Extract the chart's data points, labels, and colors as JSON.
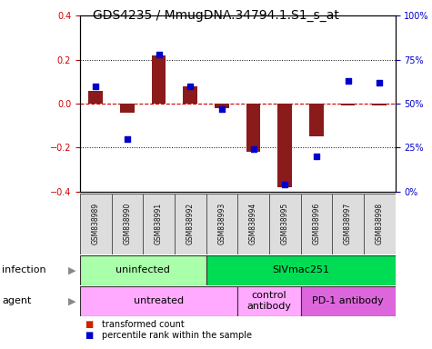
{
  "title": "GDS4235 / MmugDNA.34794.1.S1_s_at",
  "samples": [
    "GSM838989",
    "GSM838990",
    "GSM838991",
    "GSM838992",
    "GSM838993",
    "GSM838994",
    "GSM838995",
    "GSM838996",
    "GSM838997",
    "GSM838998"
  ],
  "transformed_count": [
    0.06,
    -0.04,
    0.22,
    0.08,
    -0.02,
    -0.22,
    -0.38,
    -0.15,
    -0.01,
    -0.01
  ],
  "percentile_rank": [
    60,
    30,
    78,
    60,
    47,
    24,
    4,
    20,
    63,
    62
  ],
  "ylim_left": [
    -0.4,
    0.4
  ],
  "ylim_right": [
    0,
    100
  ],
  "yticks_left": [
    -0.4,
    -0.2,
    0.0,
    0.2,
    0.4
  ],
  "yticks_right": [
    0,
    25,
    50,
    75,
    100
  ],
  "yticklabels_right": [
    "0%",
    "25%",
    "50%",
    "75%",
    "100%"
  ],
  "bar_color": "#8B1A1A",
  "dot_color": "#0000CC",
  "zero_line_color": "#CC0000",
  "dotted_line_color": "#000000",
  "infection_groups": [
    {
      "label": "uninfected",
      "start": 0,
      "end": 4,
      "color": "#AAFFAA"
    },
    {
      "label": "SIVmac251",
      "start": 4,
      "end": 10,
      "color": "#00DD55"
    }
  ],
  "agent_groups": [
    {
      "label": "untreated",
      "start": 0,
      "end": 5,
      "color": "#FFAAFF"
    },
    {
      "label": "control\nantibody",
      "start": 5,
      "end": 7,
      "color": "#FFAAFF"
    },
    {
      "label": "PD-1 antibody",
      "start": 7,
      "end": 10,
      "color": "#DD66DD"
    }
  ],
  "legend_bar_color": "#CC2200",
  "legend_dot_color": "#0000CC",
  "bg_color": "#FFFFFF",
  "plot_bg": "#FFFFFF",
  "title_fontsize": 10,
  "tick_fontsize": 7,
  "sample_fontsize": 5.5,
  "annot_fontsize": 8,
  "legend_fontsize": 7
}
